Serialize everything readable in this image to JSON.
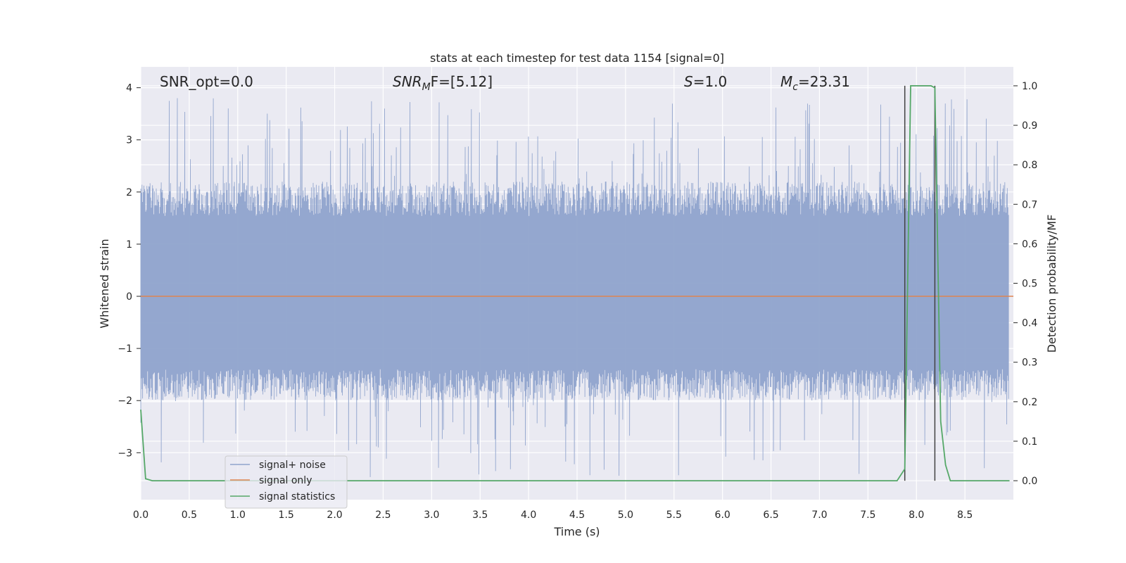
{
  "chart_data": {
    "type": "line",
    "title": "stats at each timestep for test data 1154 [signal=0]",
    "xlabel": "Time (s)",
    "ylabel": "Whitened strain",
    "y2label": "Detection probability/MF",
    "xlim": [
      0.0,
      9.0
    ],
    "ylim": [
      -3.9,
      4.4
    ],
    "y2lim": [
      -0.048,
      1.048
    ],
    "xticks": [
      "0.0",
      "0.5",
      "1.0",
      "1.5",
      "2.0",
      "2.5",
      "3.0",
      "3.5",
      "4.0",
      "4.5",
      "5.0",
      "5.5",
      "6.0",
      "6.5",
      "7.0",
      "7.5",
      "8.0",
      "8.5"
    ],
    "yticks": [
      "4",
      "3",
      "2",
      "1",
      "0",
      "−1",
      "−2",
      "−3"
    ],
    "y2ticks": [
      "1.0",
      "0.9",
      "0.8",
      "0.7",
      "0.6",
      "0.5",
      "0.4",
      "0.3",
      "0.2",
      "0.1",
      "0.0"
    ],
    "grid": true,
    "legend_position": "lower-left",
    "annotations": {
      "snr_opt": "SNR_opt=0.0",
      "snr_mf_main": "SNR",
      "snr_mf_sub": "M",
      "snr_mf_rest": "F=[5.12]",
      "s_italic": "S",
      "s_rest": "=1.0",
      "mc_main": "M",
      "mc_sub": "c",
      "mc_rest": "=23.31"
    },
    "series": [
      {
        "name": "signal+ noise",
        "color": "#8fa3cc",
        "description_values": "noise envelope, max abs approx 3.8",
        "envelope": {
          "typical_high": 2.2,
          "typical_low": -2.0,
          "peak_high": 3.8,
          "peak_low": -3.5
        }
      },
      {
        "name": "signal only",
        "color": "#dd8452",
        "x": [
          0.0,
          9.0
        ],
        "y": [
          0.0,
          0.0
        ]
      },
      {
        "name": "signal statistics",
        "color": "#55a868",
        "axis": "right",
        "x": [
          0.0,
          0.05,
          0.12,
          0.5,
          1.0,
          2.0,
          3.0,
          4.0,
          5.0,
          6.0,
          7.0,
          7.5,
          7.8,
          7.88,
          7.94,
          8.0,
          8.1,
          8.15,
          8.19,
          8.25,
          8.3,
          8.35,
          8.5,
          8.96
        ],
        "y": [
          0.18,
          0.005,
          0.0,
          0.0,
          0.0,
          0.0,
          0.0,
          0.0,
          0.0,
          0.0,
          0.0,
          0.0,
          0.0,
          0.03,
          1.0,
          1.0,
          1.0,
          1.0,
          0.995,
          0.15,
          0.04,
          0.0,
          0.0,
          0.0
        ]
      }
    ],
    "vlines": [
      7.88,
      8.19
    ],
    "vline_color": "#404040"
  }
}
